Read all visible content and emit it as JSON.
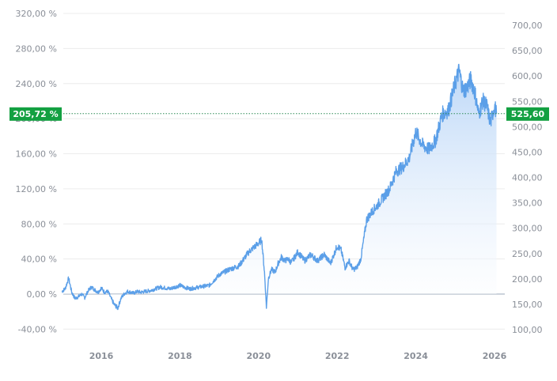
{
  "chart_data": {
    "type": "area",
    "left_axis": {
      "ticks": [
        "-40,00 %",
        "0,00 %",
        "40,00 %",
        "80,00 %",
        "120,00 %",
        "160,00 %",
        "200,00 %",
        "240,00 %",
        "280,00 %",
        "320,00 %"
      ],
      "tick_values": [
        -40,
        0,
        40,
        80,
        120,
        160,
        200,
        240,
        280,
        320
      ],
      "ylim": [
        -50,
        330
      ]
    },
    "right_axis": {
      "ticks": [
        "100,00",
        "150,00",
        "200,00",
        "250,00",
        "300,00",
        "350,00",
        "400,00",
        "450,00",
        "500,00",
        "550,00",
        "600,00",
        "650,00",
        "700,00"
      ],
      "tick_values": [
        100,
        150,
        200,
        250,
        300,
        350,
        400,
        450,
        500,
        550,
        600,
        650,
        700
      ]
    },
    "x_axis": {
      "ticks": [
        "2016",
        "2018",
        "2020",
        "2022",
        "2024",
        "2026"
      ],
      "tick_values": [
        2016,
        2018,
        2020,
        2022,
        2024,
        2026
      ],
      "xlim": [
        2015.0,
        2026.1
      ]
    },
    "grid": true,
    "current_value": {
      "percent_label": "205,72 %",
      "price_label": "525,60",
      "percent": 205.72
    },
    "colors": {
      "line": "#5b9fe8",
      "fill_top": "#b8d5f7",
      "fill_bottom": "#ffffff",
      "badge": "#13a041",
      "grid": "#ececec",
      "zero_line": "#9aa7b8",
      "dotted": "#2e8b57"
    },
    "series": [
      {
        "x": [
          2015.0,
          2015.08,
          2015.17,
          2015.25,
          2015.33,
          2015.42,
          2015.5,
          2015.58,
          2015.67,
          2015.75,
          2015.83,
          2015.92,
          2016.0,
          2016.08,
          2016.17,
          2016.25,
          2016.33,
          2016.42,
          2016.5,
          2016.58,
          2016.67,
          2016.75,
          2016.83,
          2016.92,
          2017.0,
          2017.25,
          2017.5,
          2017.75,
          2018.0,
          2018.1,
          2018.25,
          2018.5,
          2018.75,
          2019.0,
          2019.25,
          2019.5,
          2019.75,
          2020.0,
          2020.08,
          2020.15,
          2020.2,
          2020.25,
          2020.33,
          2020.42,
          2020.5,
          2020.58,
          2020.67,
          2020.75,
          2020.83,
          2020.92,
          2021.0,
          2021.17,
          2021.33,
          2021.5,
          2021.67,
          2021.83,
          2022.0,
          2022.1,
          2022.2,
          2022.3,
          2022.4,
          2022.5,
          2022.6,
          2022.75,
          2022.9,
          2023.0,
          2023.17,
          2023.33,
          2023.5,
          2023.67,
          2023.83,
          2024.0,
          2024.17,
          2024.33,
          2024.5,
          2024.67,
          2024.83,
          2025.0,
          2025.1,
          2025.2,
          2025.3,
          2025.4,
          2025.5,
          2025.6,
          2025.7,
          2025.8,
          2025.9,
          2026.0,
          2026.05
        ],
        "y": [
          3,
          6,
          18,
          2,
          -5,
          -3,
          0,
          -4,
          4,
          8,
          5,
          2,
          7,
          2,
          3,
          -5,
          -12,
          -16,
          -5,
          0,
          3,
          2,
          1,
          3,
          2,
          4,
          8,
          6,
          10,
          8,
          6,
          8,
          10,
          22,
          28,
          32,
          48,
          58,
          62,
          25,
          -15,
          18,
          28,
          25,
          35,
          42,
          38,
          40,
          36,
          42,
          48,
          38,
          45,
          38,
          45,
          35,
          55,
          50,
          30,
          38,
          28,
          30,
          40,
          85,
          95,
          100,
          110,
          120,
          140,
          145,
          155,
          185,
          170,
          165,
          175,
          205,
          210,
          240,
          255,
          232,
          235,
          245,
          230,
          205,
          220,
          215,
          195,
          215,
          205.72
        ]
      }
    ]
  }
}
